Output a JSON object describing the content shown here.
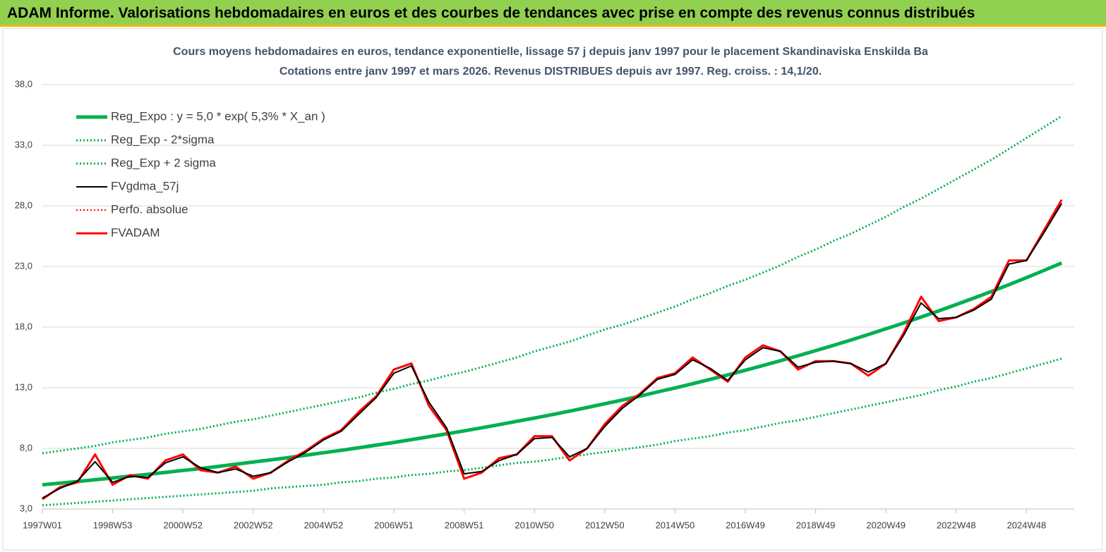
{
  "header": {
    "title": "ADAM Informe. Valorisations hebdomadaires en euros et des courbes de tendances avec prise en compte des revenus connus distribués"
  },
  "chart_data": {
    "type": "line",
    "title": "Cours moyens hebdomadaires en euros, tendance exponentielle, lissage 57 j depuis janv 1997  pour le placement Skandinaviska Enskilda Ba",
    "subtitle": "Cotations entre janv 1997 et mars 2026. Revenus DISTRIBUES depuis avr 1997. Reg. croiss. : 14,1/20.",
    "categories": [
      "1997W01",
      null,
      null,
      null,
      "1998W53",
      null,
      null,
      null,
      "2000W52",
      null,
      null,
      null,
      "2002W52",
      null,
      null,
      null,
      "2004W52",
      null,
      null,
      null,
      "2006W51",
      null,
      null,
      null,
      "2008W51",
      null,
      null,
      null,
      "2010W50",
      null,
      null,
      null,
      "2012W50",
      null,
      null,
      null,
      "2014W50",
      null,
      null,
      null,
      "2016W49",
      null,
      null,
      null,
      "2018W49",
      null,
      null,
      null,
      "2020W49",
      null,
      null,
      null,
      "2022W48",
      null,
      null,
      null,
      "2024W48",
      null,
      null
    ],
    "ylim": [
      3,
      38
    ],
    "yticks": [
      {
        "value": 3,
        "label": "3,0"
      },
      {
        "value": 8,
        "label": "8,0"
      },
      {
        "value": 13,
        "label": "13,0"
      },
      {
        "value": 18,
        "label": "18,0"
      },
      {
        "value": 23,
        "label": "23,0"
      },
      {
        "value": 28,
        "label": "28,0"
      },
      {
        "value": 33,
        "label": "33,0"
      },
      {
        "value": 38,
        "label": "38,0"
      }
    ],
    "grid": true,
    "legend": "upper-left",
    "series": [
      {
        "name": "Reg_Expo : y = 5,0 * exp( 5,3% *  X_an )",
        "color": "#00b050",
        "style": "solid",
        "width": 5,
        "values": [
          5.0,
          5.13,
          5.27,
          5.41,
          5.56,
          5.71,
          5.86,
          6.02,
          6.18,
          6.34,
          6.51,
          6.69,
          6.87,
          7.05,
          7.24,
          7.44,
          7.64,
          7.84,
          8.05,
          8.27,
          8.49,
          8.72,
          8.96,
          9.2,
          9.44,
          9.7,
          9.96,
          10.23,
          10.5,
          10.78,
          11.07,
          11.37,
          11.68,
          11.99,
          12.31,
          12.65,
          12.98,
          13.33,
          13.69,
          14.06,
          14.44,
          14.83,
          15.23,
          15.64,
          16.06,
          16.49,
          16.93,
          17.39,
          17.86,
          18.34,
          18.83,
          19.34,
          19.86,
          20.39,
          20.94,
          21.5,
          22.08,
          22.68,
          23.29
        ]
      },
      {
        "name": "Reg_Exp - 2*sigma",
        "color": "#00b050",
        "style": "dotted",
        "width": 3,
        "values": [
          3.3,
          3.4,
          3.5,
          3.6,
          3.7,
          3.8,
          3.9,
          4.0,
          4.1,
          4.2,
          4.3,
          4.4,
          4.5,
          4.7,
          4.8,
          4.9,
          5.0,
          5.2,
          5.3,
          5.5,
          5.6,
          5.8,
          5.9,
          6.1,
          6.2,
          6.4,
          6.6,
          6.8,
          6.9,
          7.1,
          7.3,
          7.5,
          7.7,
          7.9,
          8.1,
          8.3,
          8.6,
          8.8,
          9.0,
          9.3,
          9.5,
          9.8,
          10.1,
          10.3,
          10.6,
          10.9,
          11.2,
          11.5,
          11.8,
          12.1,
          12.4,
          12.8,
          13.1,
          13.5,
          13.8,
          14.2,
          14.6,
          15.0,
          15.4
        ]
      },
      {
        "name": "Reg_Exp + 2 sigma",
        "color": "#00b050",
        "style": "dotted",
        "width": 3,
        "values": [
          7.6,
          7.8,
          8.0,
          8.2,
          8.5,
          8.7,
          8.9,
          9.2,
          9.4,
          9.6,
          9.9,
          10.2,
          10.4,
          10.7,
          11.0,
          11.3,
          11.6,
          11.9,
          12.2,
          12.6,
          12.9,
          13.3,
          13.6,
          14.0,
          14.3,
          14.7,
          15.1,
          15.5,
          16.0,
          16.4,
          16.8,
          17.3,
          17.8,
          18.2,
          18.7,
          19.2,
          19.7,
          20.3,
          20.8,
          21.4,
          21.9,
          22.5,
          23.1,
          23.8,
          24.4,
          25.1,
          25.7,
          26.4,
          27.1,
          27.9,
          28.6,
          29.4,
          30.2,
          31.0,
          31.8,
          32.7,
          33.6,
          34.5,
          35.4
        ]
      },
      {
        "name": "FVgdma_57j",
        "color": "#000000",
        "style": "solid",
        "width": 2,
        "values": [
          3.9,
          4.7,
          5.3,
          6.9,
          5.2,
          5.7,
          5.6,
          6.8,
          7.3,
          6.4,
          6.0,
          6.3,
          5.7,
          6.0,
          6.9,
          7.7,
          8.7,
          9.4,
          10.8,
          12.2,
          14.2,
          14.8,
          11.8,
          9.7,
          5.9,
          6.1,
          7.0,
          7.5,
          8.8,
          8.9,
          7.3,
          8.0,
          9.8,
          11.3,
          12.4,
          13.7,
          14.1,
          15.3,
          14.6,
          13.6,
          15.3,
          16.3,
          16.0,
          14.7,
          15.1,
          15.2,
          15.0,
          14.3,
          15.0,
          17.3,
          20.0,
          18.7,
          18.8,
          19.4,
          20.3,
          23.2,
          23.5,
          25.8,
          28.2
        ]
      },
      {
        "name": "Perfo. absolue",
        "color": "#ff0000",
        "style": "dotted",
        "width": 2,
        "values": [
          3.8,
          4.8,
          5.2,
          7.5,
          5.0,
          5.8,
          5.5,
          7.0,
          7.5,
          6.2,
          6.0,
          6.5,
          5.5,
          6.0,
          7.0,
          7.8,
          8.8,
          9.5,
          11.0,
          12.3,
          14.5,
          15.0,
          11.5,
          9.5,
          5.5,
          6.0,
          7.2,
          7.5,
          9.0,
          9.0,
          7.0,
          8.0,
          10.0,
          11.5,
          12.5,
          13.8,
          14.2,
          15.5,
          14.5,
          13.5,
          15.5,
          16.5,
          16.0,
          14.5,
          15.2,
          15.2,
          15.0,
          14.0,
          15.0,
          17.5,
          20.5,
          18.5,
          18.8,
          19.5,
          20.5,
          23.5,
          23.5,
          26.0,
          28.5
        ]
      },
      {
        "name": "FVADAM",
        "color": "#ff0000",
        "style": "solid",
        "width": 3,
        "values": [
          3.8,
          4.8,
          5.2,
          7.5,
          5.0,
          5.8,
          5.5,
          7.0,
          7.5,
          6.2,
          6.0,
          6.5,
          5.5,
          6.0,
          7.0,
          7.8,
          8.8,
          9.5,
          11.0,
          12.3,
          14.5,
          15.0,
          11.5,
          9.5,
          5.5,
          6.0,
          7.2,
          7.5,
          9.0,
          9.0,
          7.0,
          8.0,
          10.0,
          11.5,
          12.5,
          13.8,
          14.2,
          15.5,
          14.5,
          13.5,
          15.5,
          16.5,
          16.0,
          14.5,
          15.2,
          15.2,
          15.0,
          14.0,
          15.0,
          17.5,
          20.5,
          18.5,
          18.8,
          19.5,
          20.5,
          23.5,
          23.5,
          26.0,
          28.5
        ]
      }
    ]
  }
}
